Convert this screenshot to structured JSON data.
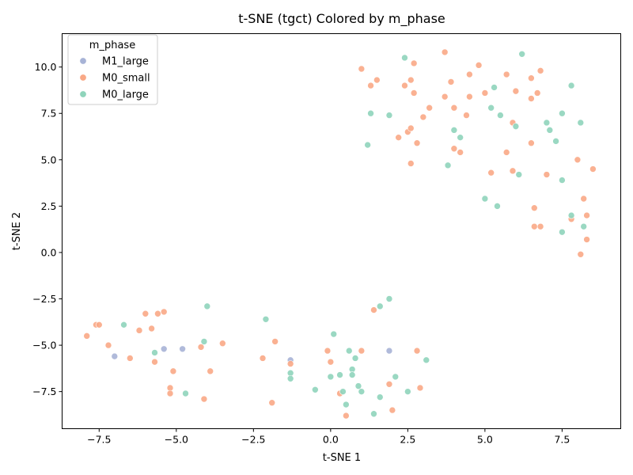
{
  "chart_data": {
    "type": "scatter",
    "title": "t-SNE (tgct) Colored by m_phase",
    "xlabel": "t-SNE 1",
    "ylabel": "t-SNE 2",
    "xlim": [
      -8.7,
      9.4
    ],
    "ylim": [
      -9.5,
      11.8
    ],
    "xticks": [
      -7.5,
      -5.0,
      -2.5,
      0.0,
      2.5,
      5.0,
      7.5
    ],
    "xtick_labels": [
      "−7.5",
      "−5.0",
      "−2.5",
      "0.0",
      "2.5",
      "5.0",
      "7.5"
    ],
    "yticks": [
      -7.5,
      -5.0,
      -2.5,
      0.0,
      2.5,
      5.0,
      7.5,
      10.0
    ],
    "ytick_labels": [
      "−7.5",
      "−5.0",
      "−2.5",
      "0.0",
      "2.5",
      "5.0",
      "7.5",
      "10.0"
    ],
    "grid": false,
    "legend": {
      "title": "m_phase",
      "position": "upper-left"
    },
    "series": [
      {
        "name": "M1_large",
        "color": "#a7b3d6",
        "points": [
          [
            -7.0,
            -5.6
          ],
          [
            -5.4,
            -5.2
          ],
          [
            -4.8,
            -5.2
          ],
          [
            -1.3,
            -5.8
          ],
          [
            1.9,
            -5.3
          ]
        ]
      },
      {
        "name": "M0_small",
        "color": "#f9a886",
        "points": [
          [
            1.0,
            9.9
          ],
          [
            1.3,
            9.0
          ],
          [
            1.5,
            9.3
          ],
          [
            2.4,
            9.0
          ],
          [
            2.6,
            9.3
          ],
          [
            2.7,
            10.2
          ],
          [
            3.7,
            10.8
          ],
          [
            4.8,
            10.1
          ],
          [
            5.7,
            9.6
          ],
          [
            6.8,
            9.8
          ],
          [
            6.5,
            9.4
          ],
          [
            3.9,
            9.2
          ],
          [
            4.5,
            9.6
          ],
          [
            2.7,
            8.6
          ],
          [
            3.7,
            8.4
          ],
          [
            4.5,
            8.4
          ],
          [
            5.0,
            8.6
          ],
          [
            6.0,
            8.7
          ],
          [
            6.7,
            8.6
          ],
          [
            6.5,
            8.3
          ],
          [
            3.2,
            7.8
          ],
          [
            4.0,
            7.8
          ],
          [
            4.4,
            7.4
          ],
          [
            3.0,
            7.3
          ],
          [
            2.5,
            6.5
          ],
          [
            2.6,
            6.7
          ],
          [
            2.2,
            6.2
          ],
          [
            2.8,
            5.9
          ],
          [
            5.9,
            7.0
          ],
          [
            6.5,
            5.9
          ],
          [
            4.0,
            5.6
          ],
          [
            4.2,
            5.4
          ],
          [
            5.7,
            5.4
          ],
          [
            2.6,
            4.8
          ],
          [
            5.2,
            4.3
          ],
          [
            5.9,
            4.4
          ],
          [
            7.0,
            4.2
          ],
          [
            8.0,
            5.0
          ],
          [
            8.5,
            4.5
          ],
          [
            8.2,
            2.9
          ],
          [
            6.6,
            2.4
          ],
          [
            8.3,
            2.0
          ],
          [
            7.8,
            1.8
          ],
          [
            6.6,
            1.4
          ],
          [
            6.8,
            1.4
          ],
          [
            8.3,
            0.7
          ],
          [
            8.1,
            -0.1
          ],
          [
            -7.9,
            -4.5
          ],
          [
            -7.6,
            -3.9
          ],
          [
            -7.5,
            -3.9
          ],
          [
            -7.2,
            -5.0
          ],
          [
            -6.5,
            -5.7
          ],
          [
            -6.2,
            -4.2
          ],
          [
            -6.0,
            -3.3
          ],
          [
            -5.8,
            -4.1
          ],
          [
            -5.6,
            -3.3
          ],
          [
            -5.4,
            -3.2
          ],
          [
            -5.7,
            -5.9
          ],
          [
            -5.1,
            -6.4
          ],
          [
            -5.2,
            -7.3
          ],
          [
            -5.2,
            -7.6
          ],
          [
            -4.2,
            -5.1
          ],
          [
            -4.1,
            -7.9
          ],
          [
            -3.9,
            -6.4
          ],
          [
            -3.5,
            -4.9
          ],
          [
            -2.2,
            -5.7
          ],
          [
            -1.8,
            -4.8
          ],
          [
            -1.9,
            -8.1
          ],
          [
            -1.3,
            -6.0
          ],
          [
            -0.1,
            -5.3
          ],
          [
            0.0,
            -5.9
          ],
          [
            1.0,
            -5.3
          ],
          [
            1.4,
            -3.1
          ],
          [
            0.3,
            -7.6
          ],
          [
            0.5,
            -8.8
          ],
          [
            1.9,
            -7.1
          ],
          [
            2.0,
            -8.5
          ],
          [
            2.8,
            -5.3
          ],
          [
            2.9,
            -7.3
          ]
        ]
      },
      {
        "name": "M0_large",
        "color": "#8fd4bb",
        "points": [
          [
            2.4,
            10.5
          ],
          [
            6.2,
            10.7
          ],
          [
            7.8,
            9.0
          ],
          [
            5.3,
            8.9
          ],
          [
            5.2,
            7.8
          ],
          [
            5.5,
            7.4
          ],
          [
            7.5,
            7.5
          ],
          [
            8.1,
            7.0
          ],
          [
            7.0,
            7.0
          ],
          [
            7.1,
            6.6
          ],
          [
            7.3,
            6.0
          ],
          [
            6.0,
            6.8
          ],
          [
            4.0,
            6.6
          ],
          [
            4.2,
            6.2
          ],
          [
            1.3,
            7.5
          ],
          [
            1.9,
            7.4
          ],
          [
            1.2,
            5.8
          ],
          [
            3.8,
            4.7
          ],
          [
            6.1,
            4.2
          ],
          [
            7.5,
            3.9
          ],
          [
            5.0,
            2.9
          ],
          [
            5.4,
            2.5
          ],
          [
            7.8,
            2.0
          ],
          [
            8.2,
            1.4
          ],
          [
            7.5,
            1.1
          ],
          [
            -6.7,
            -3.9
          ],
          [
            -5.7,
            -5.4
          ],
          [
            -4.7,
            -7.6
          ],
          [
            -4.1,
            -4.8
          ],
          [
            -4.0,
            -2.9
          ],
          [
            -2.1,
            -3.6
          ],
          [
            -1.3,
            -6.5
          ],
          [
            -1.3,
            -6.8
          ],
          [
            -0.5,
            -7.4
          ],
          [
            0.1,
            -4.4
          ],
          [
            0.0,
            -6.7
          ],
          [
            0.3,
            -6.6
          ],
          [
            0.4,
            -7.5
          ],
          [
            0.5,
            -8.2
          ],
          [
            0.6,
            -5.3
          ],
          [
            0.7,
            -6.3
          ],
          [
            0.7,
            -6.6
          ],
          [
            0.8,
            -5.7
          ],
          [
            0.9,
            -7.2
          ],
          [
            1.0,
            -7.5
          ],
          [
            1.4,
            -8.7
          ],
          [
            1.6,
            -2.9
          ],
          [
            1.6,
            -7.8
          ],
          [
            1.9,
            -2.5
          ],
          [
            2.1,
            -6.7
          ],
          [
            2.5,
            -7.5
          ],
          [
            3.1,
            -5.8
          ]
        ]
      }
    ]
  }
}
